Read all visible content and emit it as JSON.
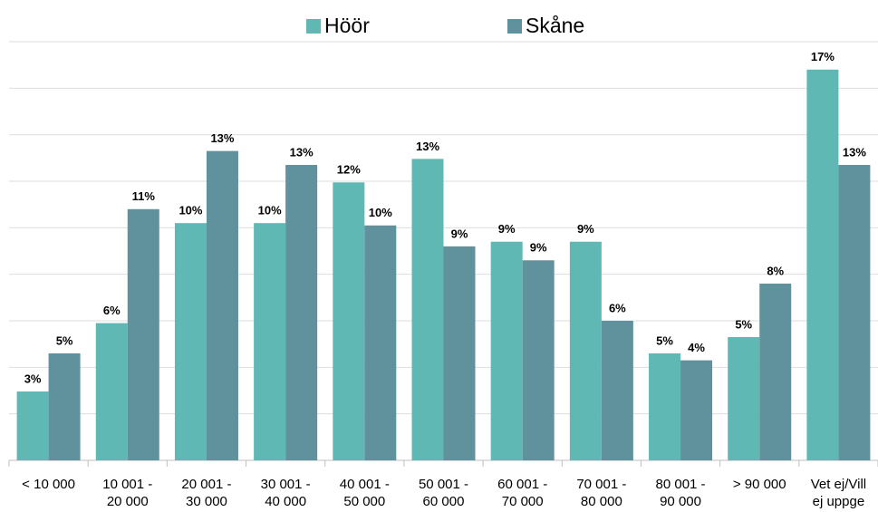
{
  "chart_data": {
    "type": "bar",
    "categories": [
      "< 10 000",
      "10 001 -\n20 000",
      "20 001 -\n30 000",
      "30 001 -\n40 000",
      "40 001 -\n50 000",
      "50 001 -\n60 000",
      "60 001 -\n70 000",
      "70 001 -\n80 000",
      "80 001 -\n90 000",
      "> 90 000",
      "Vet ej/Vill\nej uppge"
    ],
    "series": [
      {
        "name": "Höör",
        "color": "#5fb8b3",
        "values": [
          2.96,
          5.9,
          10.2,
          10.2,
          11.95,
          12.96,
          9.4,
          9.4,
          4.6,
          5.3,
          16.8
        ],
        "value_labels": [
          "3%",
          "6%",
          "10%",
          "10%",
          "12%",
          "13%",
          "9%",
          "9%",
          "5%",
          "5%",
          "17%"
        ]
      },
      {
        "name": "Skåne",
        "color": "#5f929c",
        "values": [
          4.6,
          10.8,
          13.3,
          12.7,
          10.1,
          9.2,
          8.6,
          6.0,
          4.3,
          7.6,
          12.7
        ],
        "value_labels": [
          "5%",
          "11%",
          "13%",
          "13%",
          "10%",
          "9%",
          "9%",
          "6%",
          "4%",
          "8%",
          "13%"
        ]
      }
    ],
    "ylim": [
      0,
      18
    ],
    "yticks": [
      0,
      2,
      4,
      6,
      8,
      10,
      12,
      14,
      16,
      18
    ],
    "grid": true,
    "legend": "top"
  }
}
